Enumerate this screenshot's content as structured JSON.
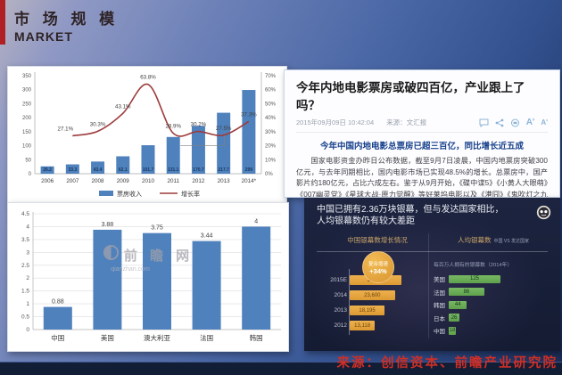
{
  "slide": {
    "title_cn": "市 场 规 模",
    "title_en": "MARKET",
    "source_text": "来源：创信资本、前瞻产业研究院"
  },
  "article": {
    "title": "今年内地电影票房或破四百亿，产业跟上了吗？",
    "date": "2015年09月09日 10:42:04",
    "source_label": "来源：",
    "source": "文汇报",
    "font_buttons": [
      "A'",
      "A'"
    ],
    "subheadline": "今年中国内地电影总票房已超三百亿，同比增长近五成",
    "body": "国家电影资金办昨日公布数据，截至9月7日凌晨，中国内地票房突破300亿元，与去年同期相比，国内电影市场已实现48.5%的增长。总票房中，国产影片约180亿元，占比六成左右。鉴于从9月开始，《碟中谍5》《小黄人大眼萌》《007幽灵党》《星球大战·原力觉醒》等好莱坞电影以及《港囧》《鬼吹灯之九层妖塔》等国产大片将陆续上映，业界人士普遍预期，今年的内地电影票房或能最终突破400亿元大关。"
  },
  "infographic": {
    "title_line1": "中国已拥有2.36万块银幕，但与发达国家相比，",
    "title_line2": "人均银幕数仍有较大差距"
  },
  "chart_data": [
    {
      "type": "bar",
      "subtype": "combo-bar-line",
      "categories": [
        "2006",
        "2007",
        "2008",
        "2009",
        "2010",
        "2011",
        "2012",
        "2013",
        "2014*"
      ],
      "series": [
        {
          "name": "票房收入",
          "type": "bar",
          "axis": "left",
          "color": "#4f81bd",
          "values": [
            26.2,
            33.3,
            43.4,
            62.1,
            101.7,
            131.1,
            170.7,
            217.7,
            299
          ]
        },
        {
          "name": "增长率",
          "type": "line",
          "axis": "right",
          "color": "#9e3b3b",
          "start_index": 1,
          "suffix": "%",
          "values": [
            27.1,
            30.3,
            43.1,
            63.8,
            28.9,
            30.2,
            27.5,
            37.3
          ]
        }
      ],
      "left_axis": {
        "min": 0,
        "max": 350,
        "step": 50
      },
      "right_axis": {
        "min": 0,
        "max": 70,
        "step": 10,
        "suffix": "%"
      },
      "legend_position": "bottom",
      "grid": false
    },
    {
      "type": "bar",
      "categories": [
        "中国",
        "美国",
        "澳大利亚",
        "法国",
        "韩国"
      ],
      "values": [
        0.88,
        3.88,
        3.75,
        3.44,
        4
      ],
      "bar_color": "#4f81bd",
      "ylim": [
        0,
        4.5
      ],
      "ystep": 0.5,
      "grid": true,
      "watermark": {
        "text": "前 瞻 网",
        "sub": "qianzhan.com"
      }
    },
    {
      "type": "bar",
      "subtype": "horizontal",
      "title": "中国银幕数增长情况",
      "badge": {
        "line1": "复合增速",
        "line2": "+34%"
      },
      "categories": [
        "2015E",
        "2014",
        "2013",
        "2012"
      ],
      "values": [
        27000,
        23600,
        18195,
        13118
      ],
      "labels": [
        "27,000",
        "23,600",
        "18,195",
        "13,118"
      ],
      "bar_color": "#e2a23c",
      "xlim": [
        0,
        27000
      ]
    },
    {
      "type": "bar",
      "subtype": "horizontal",
      "title": "人均银幕数",
      "title_small": "中国 VS 发达国家",
      "subtitle": "每百万人拥有的银幕数（2014年）",
      "categories": [
        "美国",
        "法国",
        "韩国",
        "日本",
        "中国"
      ],
      "values": [
        125,
        86,
        44,
        26,
        18
      ],
      "bar_color": "#6aaa5a",
      "xlim": [
        0,
        125
      ]
    }
  ]
}
